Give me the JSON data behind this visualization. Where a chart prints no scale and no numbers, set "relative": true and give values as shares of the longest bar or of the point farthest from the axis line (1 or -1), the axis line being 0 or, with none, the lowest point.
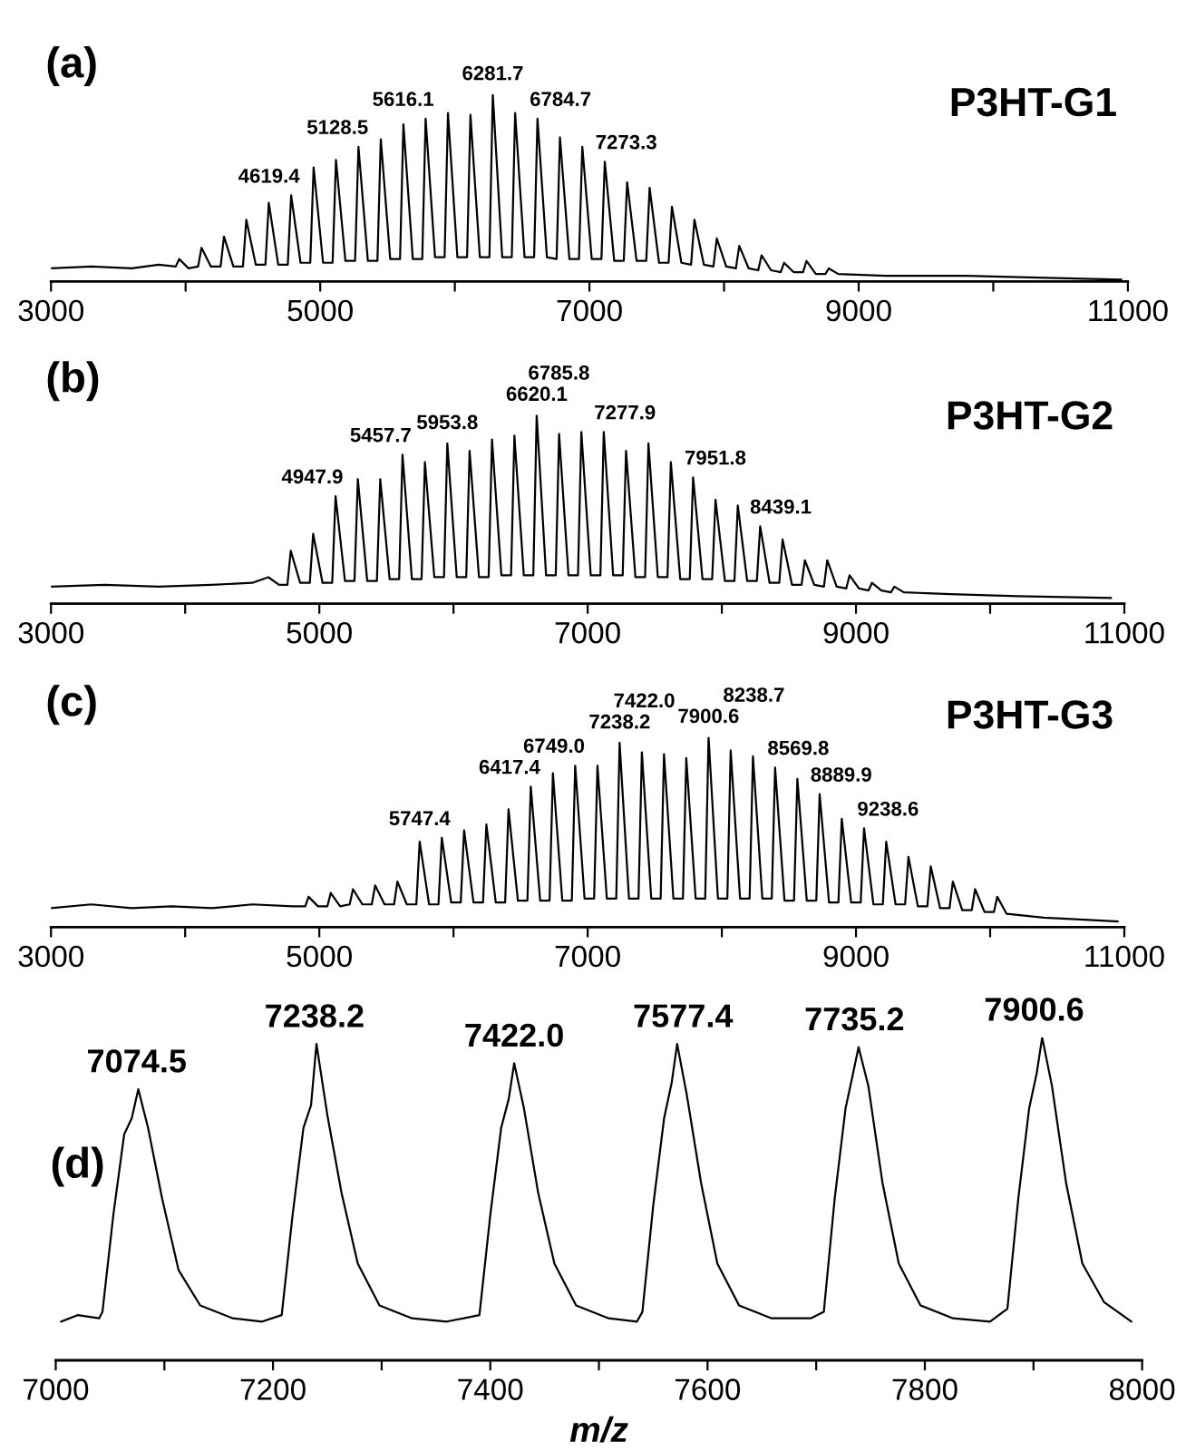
{
  "chart_data": [
    {
      "type": "line",
      "title": "(a)",
      "subtitle": "P3HT-G1",
      "relative": true,
      "xlim": [
        3000,
        11000
      ],
      "xticks": [
        3000,
        {
          "value": 4000,
          "label": null
        },
        5000,
        {
          "value": 6000,
          "label": null
        },
        7000,
        {
          "value": 8000,
          "label": null
        },
        9000,
        {
          "value": 10000,
          "label": null
        },
        11000
      ],
      "series": [
        {
          "color": "#000000",
          "x": [
            3000,
            3300,
            3600,
            3800,
            3927,
            3952,
            4022,
            4093,
            4118,
            4188,
            4260,
            4285,
            4355,
            4426,
            4451,
            4521,
            4593,
            4618,
            4688,
            4759,
            4784,
            4854,
            4926,
            4951,
            5021,
            5092,
            5117,
            5187,
            5259,
            5284,
            5354,
            5425,
            5450,
            5520,
            5593,
            5618,
            5688,
            5758,
            5783,
            5853,
            5924,
            5949,
            6019,
            6091,
            6116,
            6186,
            6257,
            6282,
            6352,
            6423,
            6448,
            6518,
            6589,
            6614,
            6684,
            6756,
            6781,
            6851,
            6922,
            6947,
            7017,
            7089,
            7114,
            7184,
            7255,
            7280,
            7350,
            7422,
            7447,
            7517,
            7588,
            7613,
            7683,
            7755,
            7780,
            7850,
            7921,
            7946,
            8016,
            8088,
            8113,
            8183,
            8254,
            8279,
            8349,
            8421,
            8446,
            8516,
            8587,
            8612,
            8682,
            8753,
            8778,
            8848,
            9200,
            9800,
            10400,
            10950
          ],
          "values": [
            0.07,
            0.08,
            0.07,
            0.09,
            0.08,
            0.12,
            0.07,
            0.08,
            0.18,
            0.08,
            0.08,
            0.24,
            0.08,
            0.08,
            0.33,
            0.09,
            0.09,
            0.42,
            0.09,
            0.09,
            0.46,
            0.1,
            0.1,
            0.61,
            0.1,
            0.1,
            0.65,
            0.11,
            0.11,
            0.72,
            0.11,
            0.11,
            0.76,
            0.12,
            0.12,
            0.84,
            0.12,
            0.12,
            0.87,
            0.13,
            0.13,
            0.9,
            0.13,
            0.13,
            0.89,
            0.13,
            0.13,
            1.0,
            0.13,
            0.13,
            0.9,
            0.13,
            0.13,
            0.87,
            0.13,
            0.12,
            0.77,
            0.12,
            0.12,
            0.72,
            0.12,
            0.12,
            0.64,
            0.11,
            0.11,
            0.53,
            0.11,
            0.11,
            0.5,
            0.1,
            0.1,
            0.4,
            0.1,
            0.09,
            0.33,
            0.09,
            0.08,
            0.23,
            0.08,
            0.07,
            0.19,
            0.07,
            0.06,
            0.14,
            0.06,
            0.05,
            0.1,
            0.05,
            0.05,
            0.11,
            0.04,
            0.04,
            0.07,
            0.04,
            0.03,
            0.03,
            0.02,
            0.01
          ]
        }
      ],
      "annotations": [
        {
          "text": "4619.4",
          "x": 4619.4,
          "y": 0.42
        },
        {
          "text": "5128.5",
          "x": 5128.5,
          "y": 0.65
        },
        {
          "text": "5616.1",
          "x": 5616.1,
          "y": 0.84
        },
        {
          "text": "6281.7",
          "x": 6281.7,
          "y": 1.0
        },
        {
          "text": "6784.7",
          "x": 6784.7,
          "y": 0.77
        },
        {
          "text": "7273.3",
          "x": 7273.3,
          "y": 0.53
        }
      ]
    },
    {
      "type": "line",
      "title": "(b)",
      "subtitle": "P3HT-G2",
      "relative": true,
      "xlim": [
        3000,
        11000
      ],
      "xticks": [
        3000,
        {
          "value": 4000,
          "label": null
        },
        5000,
        {
          "value": 6000,
          "label": null
        },
        7000,
        {
          "value": 8000,
          "label": null
        },
        9000,
        {
          "value": 10000,
          "label": null
        },
        11000
      ],
      "series": [
        {
          "color": "#000000",
          "x": [
            3000,
            3400,
            3800,
            4200,
            4500,
            4620,
            4700,
            4762,
            4787,
            4857,
            4929,
            4954,
            5024,
            5096,
            5121,
            5191,
            5262,
            5287,
            5357,
            5429,
            5454,
            5524,
            5595,
            5620,
            5690,
            5762,
            5787,
            5857,
            5929,
            5954,
            6024,
            6095,
            6120,
            6190,
            6262,
            6287,
            6357,
            6429,
            6454,
            6524,
            6595,
            6620,
            6690,
            6762,
            6787,
            6857,
            6928,
            6953,
            7023,
            7095,
            7120,
            7190,
            7261,
            7286,
            7356,
            7428,
            7453,
            7523,
            7595,
            7620,
            7690,
            7761,
            7786,
            7856,
            7928,
            7953,
            8023,
            8094,
            8119,
            8189,
            8261,
            8286,
            8356,
            8428,
            8453,
            8523,
            8594,
            8619,
            8689,
            8761,
            8786,
            8856,
            8927,
            8952,
            9022,
            9094,
            9119,
            9189,
            9261,
            9286,
            9356,
            9700,
            10200,
            10900
          ],
          "values": [
            0.09,
            0.1,
            0.09,
            0.1,
            0.11,
            0.14,
            0.1,
            0.1,
            0.28,
            0.11,
            0.11,
            0.37,
            0.11,
            0.11,
            0.57,
            0.12,
            0.12,
            0.66,
            0.12,
            0.12,
            0.66,
            0.13,
            0.13,
            0.79,
            0.13,
            0.13,
            0.75,
            0.14,
            0.14,
            0.85,
            0.14,
            0.14,
            0.81,
            0.14,
            0.14,
            0.87,
            0.15,
            0.15,
            0.89,
            0.15,
            0.15,
            1.0,
            0.15,
            0.15,
            0.9,
            0.15,
            0.15,
            0.91,
            0.15,
            0.15,
            0.91,
            0.15,
            0.15,
            0.81,
            0.14,
            0.14,
            0.85,
            0.14,
            0.14,
            0.75,
            0.13,
            0.13,
            0.67,
            0.13,
            0.13,
            0.55,
            0.12,
            0.12,
            0.52,
            0.12,
            0.12,
            0.41,
            0.11,
            0.11,
            0.34,
            0.1,
            0.1,
            0.23,
            0.1,
            0.09,
            0.23,
            0.09,
            0.08,
            0.15,
            0.08,
            0.07,
            0.11,
            0.07,
            0.06,
            0.09,
            0.06,
            0.05,
            0.04,
            0.03
          ]
        }
      ],
      "annotations": [
        {
          "text": "4947.9",
          "x": 4947.9,
          "y": 0.37
        },
        {
          "text": "5457.7",
          "x": 5457.7,
          "y": 0.66
        },
        {
          "text": "5953.8",
          "x": 5953.8,
          "y": 0.85
        },
        {
          "text": "6620.1",
          "x": 6620.1,
          "y": 1.0
        },
        {
          "text": "6785.8",
          "x": 6785.8,
          "y": 0.9
        },
        {
          "text": "7277.9",
          "x": 7277.9,
          "y": 0.81
        },
        {
          "text": "7951.8",
          "x": 7951.8,
          "y": 0.55
        },
        {
          "text": "8439.1",
          "x": 8439.1,
          "y": 0.34
        }
      ]
    },
    {
      "type": "line",
      "title": "(c)",
      "subtitle": "P3HT-G3",
      "relative": true,
      "xlim": [
        3000,
        11000
      ],
      "xticks": [
        3000,
        {
          "value": 4000,
          "label": null
        },
        5000,
        {
          "value": 6000,
          "label": null
        },
        7000,
        {
          "value": 8000,
          "label": null
        },
        9000,
        {
          "value": 10000,
          "label": null
        },
        11000
      ],
      "series": [
        {
          "color": "#000000",
          "x": [
            3000,
            3300,
            3600,
            3900,
            4200,
            4500,
            4800,
            4895,
            4920,
            4990,
            5060,
            5085,
            5155,
            5226,
            5251,
            5321,
            5391,
            5416,
            5486,
            5557,
            5582,
            5652,
            5723,
            5748,
            5818,
            5888,
            5913,
            5983,
            6054,
            6079,
            6149,
            6220,
            6245,
            6315,
            6385,
            6410,
            6480,
            6551,
            6576,
            6646,
            6716,
            6741,
            6811,
            6882,
            6907,
            6977,
            7048,
            7073,
            7143,
            7213,
            7238,
            7308,
            7379,
            7404,
            7474,
            7544,
            7569,
            7639,
            7710,
            7735,
            7805,
            7876,
            7901,
            7971,
            8041,
            8066,
            8136,
            8207,
            8232,
            8302,
            8372,
            8397,
            8467,
            8538,
            8563,
            8633,
            8704,
            8729,
            8799,
            8869,
            8894,
            8964,
            9035,
            9060,
            9130,
            9200,
            9225,
            9295,
            9366,
            9391,
            9461,
            9532,
            9557,
            9627,
            9697,
            9722,
            9792,
            9863,
            9888,
            9958,
            10028,
            10053,
            10123,
            10400,
            10700,
            10950
          ],
          "values": [
            0.1,
            0.12,
            0.1,
            0.11,
            0.1,
            0.12,
            0.11,
            0.11,
            0.16,
            0.11,
            0.11,
            0.18,
            0.11,
            0.12,
            0.2,
            0.12,
            0.12,
            0.22,
            0.12,
            0.12,
            0.24,
            0.12,
            0.12,
            0.45,
            0.12,
            0.12,
            0.47,
            0.13,
            0.13,
            0.51,
            0.13,
            0.13,
            0.54,
            0.13,
            0.13,
            0.62,
            0.14,
            0.14,
            0.74,
            0.14,
            0.14,
            0.81,
            0.14,
            0.14,
            0.85,
            0.15,
            0.15,
            0.85,
            0.15,
            0.15,
            0.97,
            0.15,
            0.15,
            0.92,
            0.15,
            0.15,
            0.91,
            0.15,
            0.15,
            0.89,
            0.15,
            0.15,
            1.0,
            0.15,
            0.15,
            0.93,
            0.15,
            0.15,
            0.9,
            0.15,
            0.15,
            0.84,
            0.14,
            0.14,
            0.78,
            0.14,
            0.14,
            0.7,
            0.13,
            0.13,
            0.57,
            0.13,
            0.13,
            0.52,
            0.12,
            0.12,
            0.45,
            0.12,
            0.12,
            0.37,
            0.11,
            0.11,
            0.32,
            0.1,
            0.1,
            0.24,
            0.09,
            0.09,
            0.2,
            0.08,
            0.08,
            0.16,
            0.07,
            0.05,
            0.04,
            0.03
          ]
        }
      ],
      "annotations": [
        {
          "text": "5747.4",
          "x": 5747.4,
          "y": 0.45
        },
        {
          "text": "6417.4",
          "x": 6417.4,
          "y": 0.62
        },
        {
          "text": "6749.0",
          "x": 6749.0,
          "y": 0.81
        },
        {
          "text": "7238.2",
          "x": 7238.2,
          "y": 0.97
        },
        {
          "text": "7422.0",
          "x": 7422.0,
          "y": 0.92
        },
        {
          "text": "7900.6",
          "x": 7900.6,
          "y": 1.0
        },
        {
          "text": "8238.7",
          "x": 8238.7,
          "y": 0.9
        },
        {
          "text": "8569.8",
          "x": 8569.8,
          "y": 0.78
        },
        {
          "text": "8889.9",
          "x": 8889.9,
          "y": 0.57
        },
        {
          "text": "9238.6",
          "x": 9238.6,
          "y": 0.45
        }
      ]
    },
    {
      "type": "line",
      "title": "(d)",
      "xlabel": "m/z",
      "relative": true,
      "xlim": [
        7000,
        8000
      ],
      "xticks": [
        7000,
        {
          "value": 7100,
          "label": null
        },
        7200,
        {
          "value": 7300,
          "label": null
        },
        7400,
        {
          "value": 7500,
          "label": null
        },
        7600,
        {
          "value": 7700,
          "label": null
        },
        7800,
        {
          "value": 7900,
          "label": null
        },
        8000
      ],
      "series": [
        {
          "color": "#000000",
          "x": [
            7005,
            7020,
            7040,
            7043,
            7053,
            7063,
            7070,
            7076,
            7085,
            7098,
            7113,
            7133,
            7163,
            7190,
            7208,
            7218,
            7228,
            7235,
            7240,
            7250,
            7263,
            7278,
            7298,
            7328,
            7360,
            7390,
            7400,
            7410,
            7417,
            7422,
            7431,
            7444,
            7459,
            7479,
            7509,
            7535,
            7540,
            7550,
            7560,
            7567,
            7572,
            7581,
            7594,
            7609,
            7629,
            7659,
            7695,
            7707,
            7717,
            7727,
            7734,
            7739,
            7748,
            7761,
            7776,
            7796,
            7826,
            7860,
            7876,
            7886,
            7896,
            7903,
            7908,
            7917,
            7930,
            7945,
            7965,
            7990
          ],
          "values": [
            0.12,
            0.14,
            0.13,
            0.15,
            0.45,
            0.7,
            0.75,
            0.84,
            0.72,
            0.5,
            0.28,
            0.17,
            0.13,
            0.12,
            0.14,
            0.45,
            0.72,
            0.79,
            0.98,
            0.76,
            0.52,
            0.3,
            0.17,
            0.13,
            0.12,
            0.14,
            0.45,
            0.72,
            0.81,
            0.92,
            0.78,
            0.52,
            0.3,
            0.17,
            0.13,
            0.12,
            0.15,
            0.48,
            0.75,
            0.86,
            0.98,
            0.82,
            0.55,
            0.3,
            0.17,
            0.13,
            0.13,
            0.15,
            0.5,
            0.78,
            0.89,
            0.97,
            0.85,
            0.55,
            0.3,
            0.17,
            0.13,
            0.12,
            0.16,
            0.5,
            0.78,
            0.89,
            1.0,
            0.85,
            0.55,
            0.3,
            0.18,
            0.12
          ]
        }
      ],
      "annotations": [
        {
          "text": "7074.5",
          "x": 7074.5,
          "y": 0.84
        },
        {
          "text": "7238.2",
          "x": 7238.2,
          "y": 0.98
        },
        {
          "text": "7422.0",
          "x": 7422.0,
          "y": 0.92
        },
        {
          "text": "7577.4",
          "x": 7577.4,
          "y": 0.98
        },
        {
          "text": "7735.2",
          "x": 7735.2,
          "y": 0.97
        },
        {
          "text": "7900.6",
          "x": 7900.6,
          "y": 1.0
        }
      ]
    }
  ]
}
